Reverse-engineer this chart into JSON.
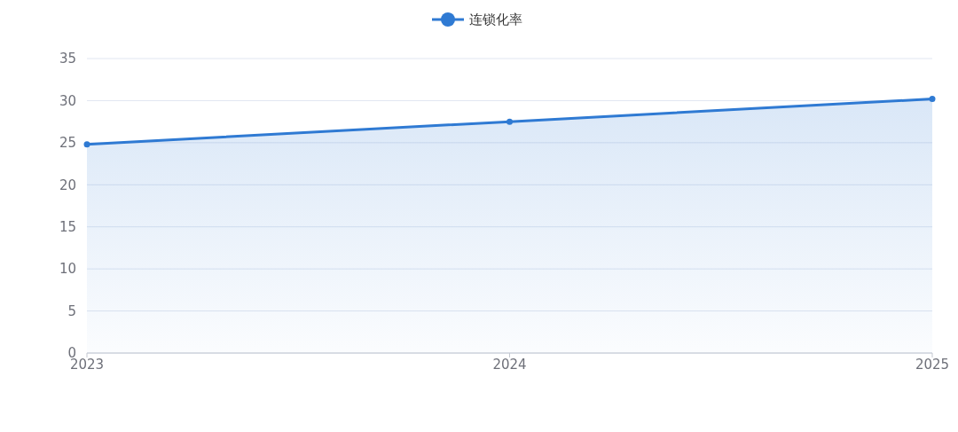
{
  "chart_data": {
    "type": "area",
    "categories": [
      "2023",
      "2024",
      "2025"
    ],
    "series": [
      {
        "name": "连锁化率",
        "color": "#2f7ad3",
        "values": [
          24.8,
          27.5,
          30.2
        ]
      }
    ],
    "ylim": [
      0,
      35
    ],
    "yticks": [
      0,
      5,
      10,
      15,
      20,
      25,
      30,
      35
    ],
    "grid": "y",
    "legend": "top",
    "marker": "circle"
  }
}
